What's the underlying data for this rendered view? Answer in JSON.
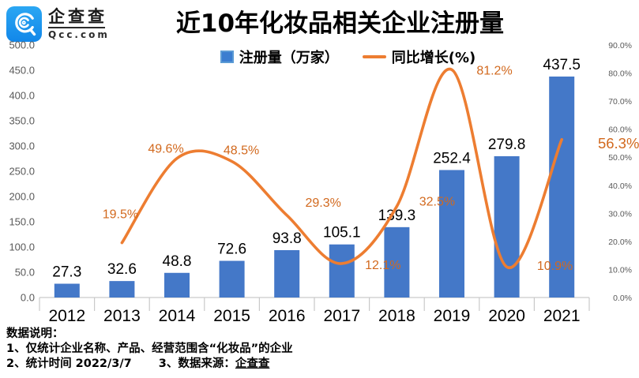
{
  "logo": {
    "name": "企查查",
    "domain": "Qcc.com"
  },
  "title": "近10年化妆品相关企业注册量",
  "legend": {
    "bars": "注册量（万家）",
    "line": "同比增长(%)"
  },
  "footnotes": {
    "heading": "数据说明：",
    "line1": "1、仅统计企业名称、产品、经营范围含“化妆品”的企业",
    "line2_left": "2、统计时间 2022/3/7",
    "line2_right": "3、数据来源：",
    "source": "企查查"
  },
  "chart_data": {
    "type": "bar",
    "subtype": "bar+line combo",
    "title": "近10年化妆品相关企业注册量",
    "categories": [
      "2012",
      "2013",
      "2014",
      "2015",
      "2016",
      "2017",
      "2018",
      "2019",
      "2020",
      "2021"
    ],
    "series": [
      {
        "name": "注册量（万家）",
        "type": "bar",
        "axis": "left",
        "color": "#4478c8",
        "values": [
          27.3,
          32.6,
          48.8,
          72.6,
          93.8,
          105.1,
          139.3,
          252.4,
          279.8,
          437.5
        ]
      },
      {
        "name": "同比增长(%)",
        "type": "line",
        "axis": "right",
        "color": "#ed7d31",
        "values": [
          null,
          19.5,
          49.6,
          48.5,
          29.3,
          12.1,
          32.5,
          81.2,
          10.9,
          56.3
        ]
      }
    ],
    "left_axis": {
      "min": 0,
      "max": 500,
      "step": 50,
      "suffix": ""
    },
    "right_axis": {
      "min": 0,
      "max": 90,
      "step": 10,
      "suffix": "%"
    },
    "legend_position": "top",
    "grid": false,
    "colors": {
      "bar": "#4478c8",
      "line": "#ed7d31",
      "bar_value_label": "#000000",
      "line_value_label": "#d2691e",
      "axis_tick_label": "#595959",
      "axis_line": "#c9c9c9",
      "year_label": "#000000"
    },
    "line_label_offsets": {
      "2013": [
        -2,
        -31
      ],
      "2014": [
        -14,
        -7
      ],
      "2015": [
        12,
        -9
      ],
      "2016": [
        46,
        -11
      ],
      "2017": [
        52,
        7
      ],
      "2018": [
        51,
        -1
      ],
      "2019": [
        54,
        6
      ],
      "2020": [
        61,
        4
      ],
      "2021": [
        72,
        11
      ]
    },
    "line_label_sizes": {
      "default": 16,
      "2021": 18.5
    }
  }
}
